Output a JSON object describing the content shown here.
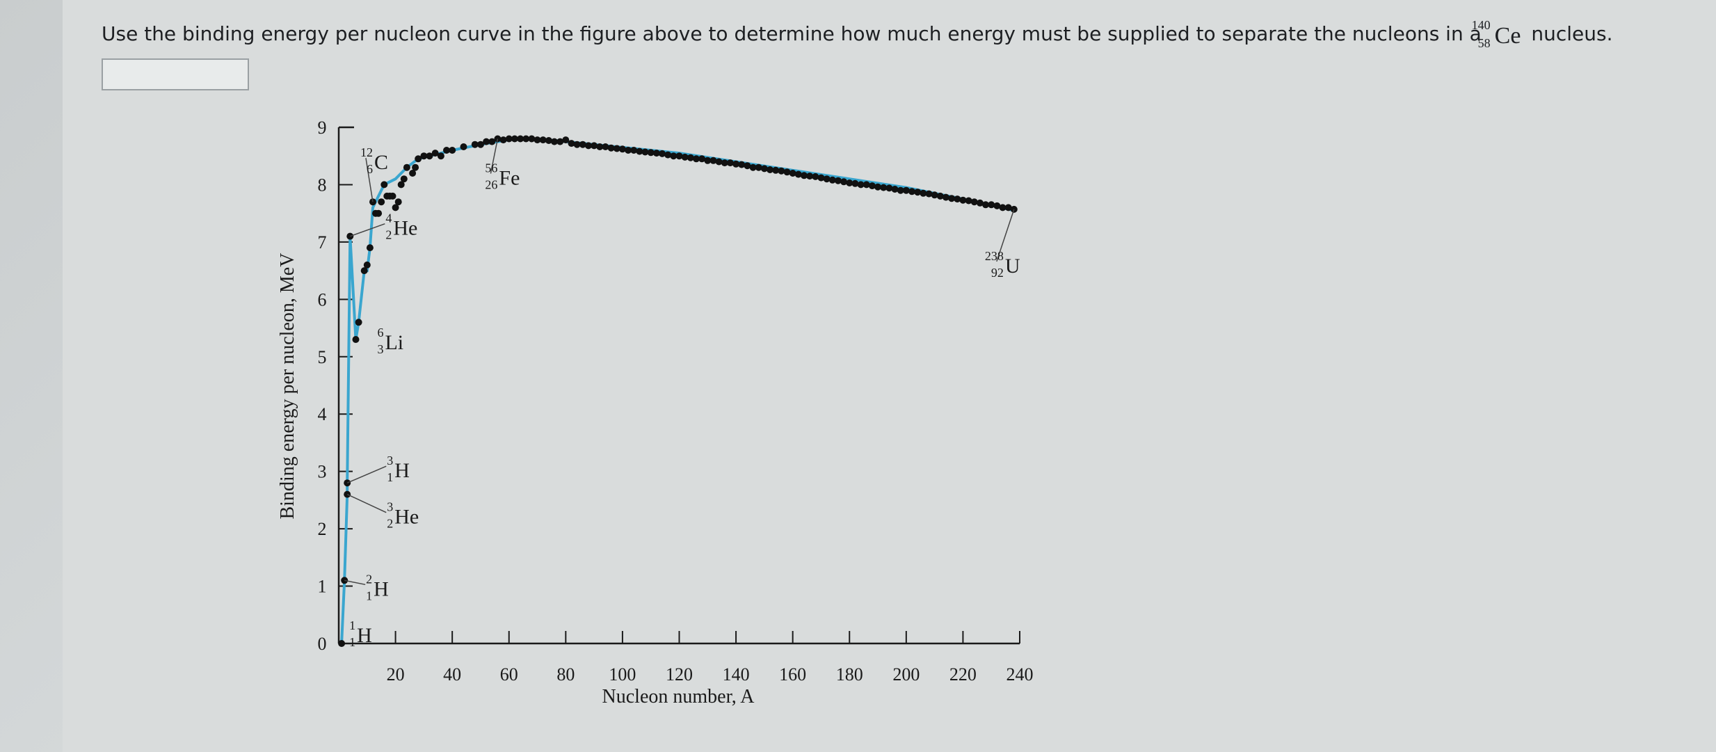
{
  "question": {
    "text_before": "Use the binding energy per nucleon curve in the figure above to determine how much energy must be supplied to separate the nucleons in a",
    "nuclide_mass": "140",
    "nuclide_atomic": "58",
    "nuclide_symbol": "Ce",
    "text_after": "nucleus.",
    "answer_value": ""
  },
  "chart_data": {
    "type": "scatter",
    "title": "",
    "xlabel": "Nucleon number, A",
    "ylabel": "Binding energy per nucleon, MeV",
    "xlim": [
      0,
      240
    ],
    "ylim": [
      0,
      9
    ],
    "x_ticks": [
      20,
      40,
      60,
      80,
      100,
      120,
      140,
      160,
      180,
      200,
      220,
      240
    ],
    "y_ticks": [
      0,
      1,
      2,
      3,
      4,
      5,
      6,
      7,
      8,
      9
    ],
    "grid": false,
    "curve_color": "#3aa6cf",
    "point_color": "#111111",
    "curve": [
      [
        1,
        0
      ],
      [
        2,
        1.1
      ],
      [
        3,
        2.6
      ],
      [
        3,
        2.8
      ],
      [
        4,
        7.1
      ],
      [
        6,
        5.3
      ],
      [
        7,
        5.6
      ],
      [
        9,
        6.5
      ],
      [
        10,
        6.5
      ],
      [
        11,
        6.9
      ],
      [
        12,
        7.6
      ],
      [
        14,
        7.8
      ],
      [
        16,
        8.0
      ],
      [
        20,
        8.1
      ],
      [
        24,
        8.3
      ],
      [
        28,
        8.45
      ],
      [
        32,
        8.5
      ],
      [
        40,
        8.6
      ],
      [
        50,
        8.7
      ],
      [
        56,
        8.75
      ],
      [
        62,
        8.8
      ],
      [
        70,
        8.8
      ],
      [
        80,
        8.75
      ],
      [
        90,
        8.7
      ],
      [
        100,
        8.65
      ],
      [
        120,
        8.55
      ],
      [
        140,
        8.4
      ],
      [
        160,
        8.25
      ],
      [
        180,
        8.1
      ],
      [
        200,
        7.95
      ],
      [
        220,
        7.75
      ],
      [
        238,
        7.55
      ]
    ],
    "points": [
      [
        1,
        0
      ],
      [
        2,
        1.1
      ],
      [
        3,
        2.6
      ],
      [
        3,
        2.8
      ],
      [
        4,
        7.1
      ],
      [
        6,
        5.3
      ],
      [
        7,
        5.6
      ],
      [
        9,
        6.5
      ],
      [
        10,
        6.6
      ],
      [
        11,
        6.9
      ],
      [
        12,
        7.7
      ],
      [
        13,
        7.5
      ],
      [
        14,
        7.5
      ],
      [
        15,
        7.7
      ],
      [
        16,
        8.0
      ],
      [
        17,
        7.8
      ],
      [
        18,
        7.8
      ],
      [
        19,
        7.8
      ],
      [
        20,
        7.6
      ],
      [
        21,
        7.7
      ],
      [
        22,
        8.0
      ],
      [
        23,
        8.1
      ],
      [
        24,
        8.3
      ],
      [
        26,
        8.2
      ],
      [
        27,
        8.3
      ],
      [
        28,
        8.45
      ],
      [
        30,
        8.5
      ],
      [
        32,
        8.5
      ],
      [
        34,
        8.55
      ],
      [
        36,
        8.5
      ],
      [
        38,
        8.6
      ],
      [
        40,
        8.6
      ],
      [
        44,
        8.66
      ],
      [
        48,
        8.7
      ],
      [
        50,
        8.7
      ],
      [
        52,
        8.75
      ],
      [
        54,
        8.75
      ],
      [
        56,
        8.8
      ],
      [
        58,
        8.78
      ],
      [
        60,
        8.8
      ],
      [
        62,
        8.8
      ],
      [
        64,
        8.8
      ],
      [
        66,
        8.8
      ],
      [
        68,
        8.8
      ],
      [
        70,
        8.78
      ],
      [
        72,
        8.78
      ],
      [
        74,
        8.77
      ],
      [
        76,
        8.75
      ],
      [
        78,
        8.75
      ],
      [
        80,
        8.78
      ],
      [
        82,
        8.72
      ],
      [
        84,
        8.7
      ],
      [
        86,
        8.7
      ],
      [
        88,
        8.68
      ],
      [
        90,
        8.68
      ],
      [
        92,
        8.66
      ],
      [
        94,
        8.66
      ],
      [
        96,
        8.64
      ],
      [
        98,
        8.63
      ],
      [
        100,
        8.62
      ],
      [
        102,
        8.6
      ],
      [
        104,
        8.6
      ],
      [
        106,
        8.58
      ],
      [
        108,
        8.57
      ],
      [
        110,
        8.56
      ],
      [
        112,
        8.55
      ],
      [
        114,
        8.54
      ],
      [
        116,
        8.52
      ],
      [
        118,
        8.5
      ],
      [
        120,
        8.5
      ],
      [
        122,
        8.48
      ],
      [
        124,
        8.47
      ],
      [
        126,
        8.45
      ],
      [
        128,
        8.45
      ],
      [
        130,
        8.42
      ],
      [
        132,
        8.42
      ],
      [
        134,
        8.4
      ],
      [
        136,
        8.38
      ],
      [
        138,
        8.38
      ],
      [
        140,
        8.36
      ],
      [
        142,
        8.35
      ],
      [
        144,
        8.33
      ],
      [
        146,
        8.3
      ],
      [
        148,
        8.3
      ],
      [
        150,
        8.28
      ],
      [
        152,
        8.26
      ],
      [
        154,
        8.25
      ],
      [
        156,
        8.24
      ],
      [
        158,
        8.22
      ],
      [
        160,
        8.2
      ],
      [
        162,
        8.18
      ],
      [
        164,
        8.16
      ],
      [
        166,
        8.15
      ],
      [
        168,
        8.14
      ],
      [
        170,
        8.12
      ],
      [
        172,
        8.1
      ],
      [
        174,
        8.08
      ],
      [
        176,
        8.07
      ],
      [
        178,
        8.05
      ],
      [
        180,
        8.03
      ],
      [
        182,
        8.02
      ],
      [
        184,
        8.0
      ],
      [
        186,
        8.0
      ],
      [
        188,
        7.98
      ],
      [
        190,
        7.96
      ],
      [
        192,
        7.95
      ],
      [
        194,
        7.94
      ],
      [
        196,
        7.92
      ],
      [
        198,
        7.9
      ],
      [
        200,
        7.9
      ],
      [
        202,
        7.88
      ],
      [
        204,
        7.87
      ],
      [
        206,
        7.85
      ],
      [
        208,
        7.84
      ],
      [
        210,
        7.82
      ],
      [
        212,
        7.8
      ],
      [
        214,
        7.78
      ],
      [
        216,
        7.76
      ],
      [
        218,
        7.75
      ],
      [
        220,
        7.73
      ],
      [
        222,
        7.72
      ],
      [
        224,
        7.7
      ],
      [
        226,
        7.68
      ],
      [
        228,
        7.65
      ],
      [
        230,
        7.65
      ],
      [
        232,
        7.63
      ],
      [
        234,
        7.6
      ],
      [
        236,
        7.6
      ],
      [
        238,
        7.57
      ]
    ],
    "annotations": [
      {
        "symbol": "H",
        "mass": "1",
        "atomic": "1",
        "x": 1,
        "y": 0
      },
      {
        "symbol": "H",
        "mass": "2",
        "atomic": "1",
        "x": 2,
        "y": 1.1
      },
      {
        "symbol": "He",
        "mass": "3",
        "atomic": "2",
        "x": 3,
        "y": 2.6
      },
      {
        "symbol": "H",
        "mass": "3",
        "atomic": "1",
        "x": 3,
        "y": 2.8
      },
      {
        "symbol": "Li",
        "mass": "6",
        "atomic": "3",
        "x": 6,
        "y": 5.3
      },
      {
        "symbol": "He",
        "mass": "4",
        "atomic": "2",
        "x": 4,
        "y": 7.1
      },
      {
        "symbol": "C",
        "mass": "12",
        "atomic": "6",
        "x": 12,
        "y": 7.7
      },
      {
        "symbol": "Fe",
        "mass": "56",
        "atomic": "26",
        "x": 56,
        "y": 8.8
      },
      {
        "symbol": "U",
        "mass": "238",
        "atomic": "92",
        "x": 238,
        "y": 7.57
      }
    ]
  }
}
